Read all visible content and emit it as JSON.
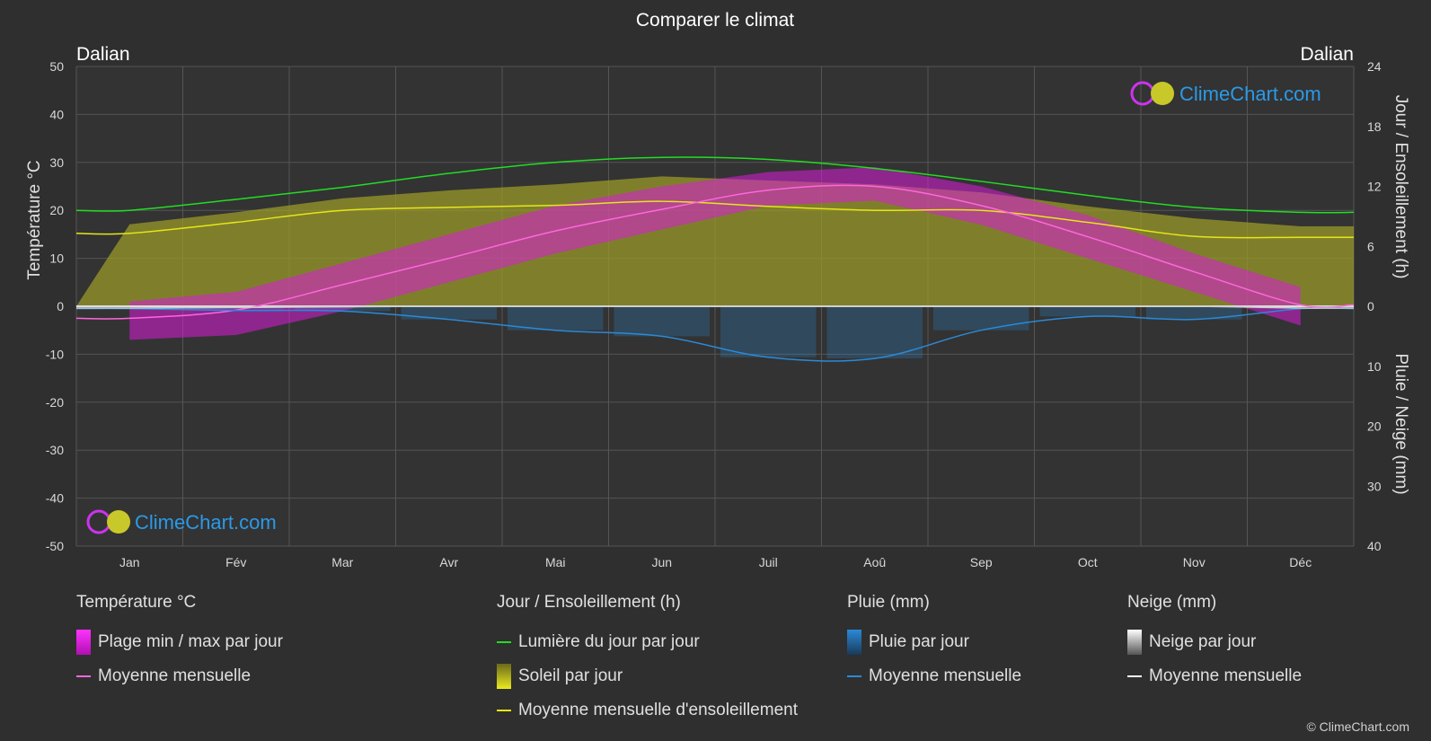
{
  "chart_data": {
    "type": "line",
    "title": "Comparer le climat",
    "location_left": "Dalian",
    "location_right": "Dalian",
    "ylabel_left": "Température °C",
    "ylabel_right_top": "Jour / Ensoleillement (h)",
    "ylabel_right_bottom": "Pluie / Neige (mm)",
    "ylim_left": [
      -50,
      50
    ],
    "yticks_left": [
      "50",
      "40",
      "30",
      "20",
      "10",
      "0",
      "-10",
      "-20",
      "-30",
      "-40",
      "-50"
    ],
    "yticks_right_top": [
      "24",
      "18",
      "12",
      "6",
      "0"
    ],
    "yticks_right_bottom": [
      "10",
      "20",
      "30",
      "40"
    ],
    "categories": [
      "Jan",
      "Fév",
      "Mar",
      "Avr",
      "Mai",
      "Jun",
      "Juil",
      "Aoû",
      "Sep",
      "Oct",
      "Nov",
      "Déc"
    ],
    "series": [
      {
        "name": "Lumière du jour par jour",
        "unit": "h",
        "values": [
          9.6,
          10.7,
          11.9,
          13.3,
          14.4,
          14.9,
          14.7,
          13.8,
          12.5,
          11.1,
          9.9,
          9.4
        ]
      },
      {
        "name": "Moyenne mensuelle d'ensoleillement",
        "unit": "h",
        "values": [
          7.3,
          8.4,
          9.6,
          9.9,
          10.1,
          10.5,
          10.0,
          9.6,
          9.6,
          8.4,
          7.0,
          6.9
        ]
      },
      {
        "name": "Température moyenne mensuelle",
        "unit": "°C",
        "values": [
          -2.5,
          -0.8,
          4.5,
          10.0,
          15.7,
          20.2,
          24.2,
          25.0,
          21.0,
          14.5,
          7.2,
          0.3
        ]
      },
      {
        "name": "Pluie moyenne mensuelle",
        "unit": "mm",
        "values": [
          0.4,
          0.7,
          0.8,
          2.2,
          4.0,
          5.0,
          8.5,
          8.7,
          4.0,
          1.7,
          2.2,
          0.4
        ]
      },
      {
        "name": "Neige moyenne mensuelle",
        "unit": "mm",
        "values": [
          0.3,
          0.2,
          0.1,
          0,
          0,
          0,
          0,
          0,
          0,
          0,
          0,
          0.3
        ]
      }
    ],
    "temp_range_min": [
      -7,
      -6,
      -1,
      5,
      11,
      16,
      21,
      22,
      17,
      10,
      3,
      -4
    ],
    "temp_range_max": [
      1,
      3,
      9,
      15,
      21,
      25,
      28,
      29,
      25,
      19,
      11,
      4
    ],
    "sunshine_daily": [
      8.2,
      9.4,
      10.8,
      11.6,
      12.2,
      13.0,
      12.6,
      12.2,
      11.4,
      10.0,
      8.8,
      8.0
    ],
    "grid": true,
    "legend_placement": "bottom"
  },
  "legend": {
    "temp": {
      "title": "Température °C",
      "items": [
        {
          "label": "Plage min / max par jour"
        },
        {
          "label": "Moyenne mensuelle"
        }
      ]
    },
    "sun": {
      "title": "Jour / Ensoleillement (h)",
      "items": [
        {
          "label": "Lumière du jour par jour"
        },
        {
          "label": "Soleil par jour"
        },
        {
          "label": "Moyenne mensuelle d'ensoleillement"
        }
      ]
    },
    "rain": {
      "title": "Pluie (mm)",
      "items": [
        {
          "label": "Pluie par jour"
        },
        {
          "label": "Moyenne mensuelle"
        }
      ]
    },
    "snow": {
      "title": "Neige (mm)",
      "items": [
        {
          "label": "Neige par jour"
        },
        {
          "label": "Moyenne mensuelle"
        }
      ]
    }
  },
  "brand": "ClimeChart.com",
  "copyright": "© ClimeChart.com",
  "colors": {
    "background": "#2f2f2f",
    "daylight": "#22dd22",
    "sunshine_avg": "#e6e619",
    "sunshine_fill": "#9a9a2a",
    "temp_avg": "#ff66dd",
    "temp_range": "#d81bd8",
    "rain": "#2a8ad8",
    "snow": "#cccccc",
    "brand": "#2a9ae8"
  }
}
